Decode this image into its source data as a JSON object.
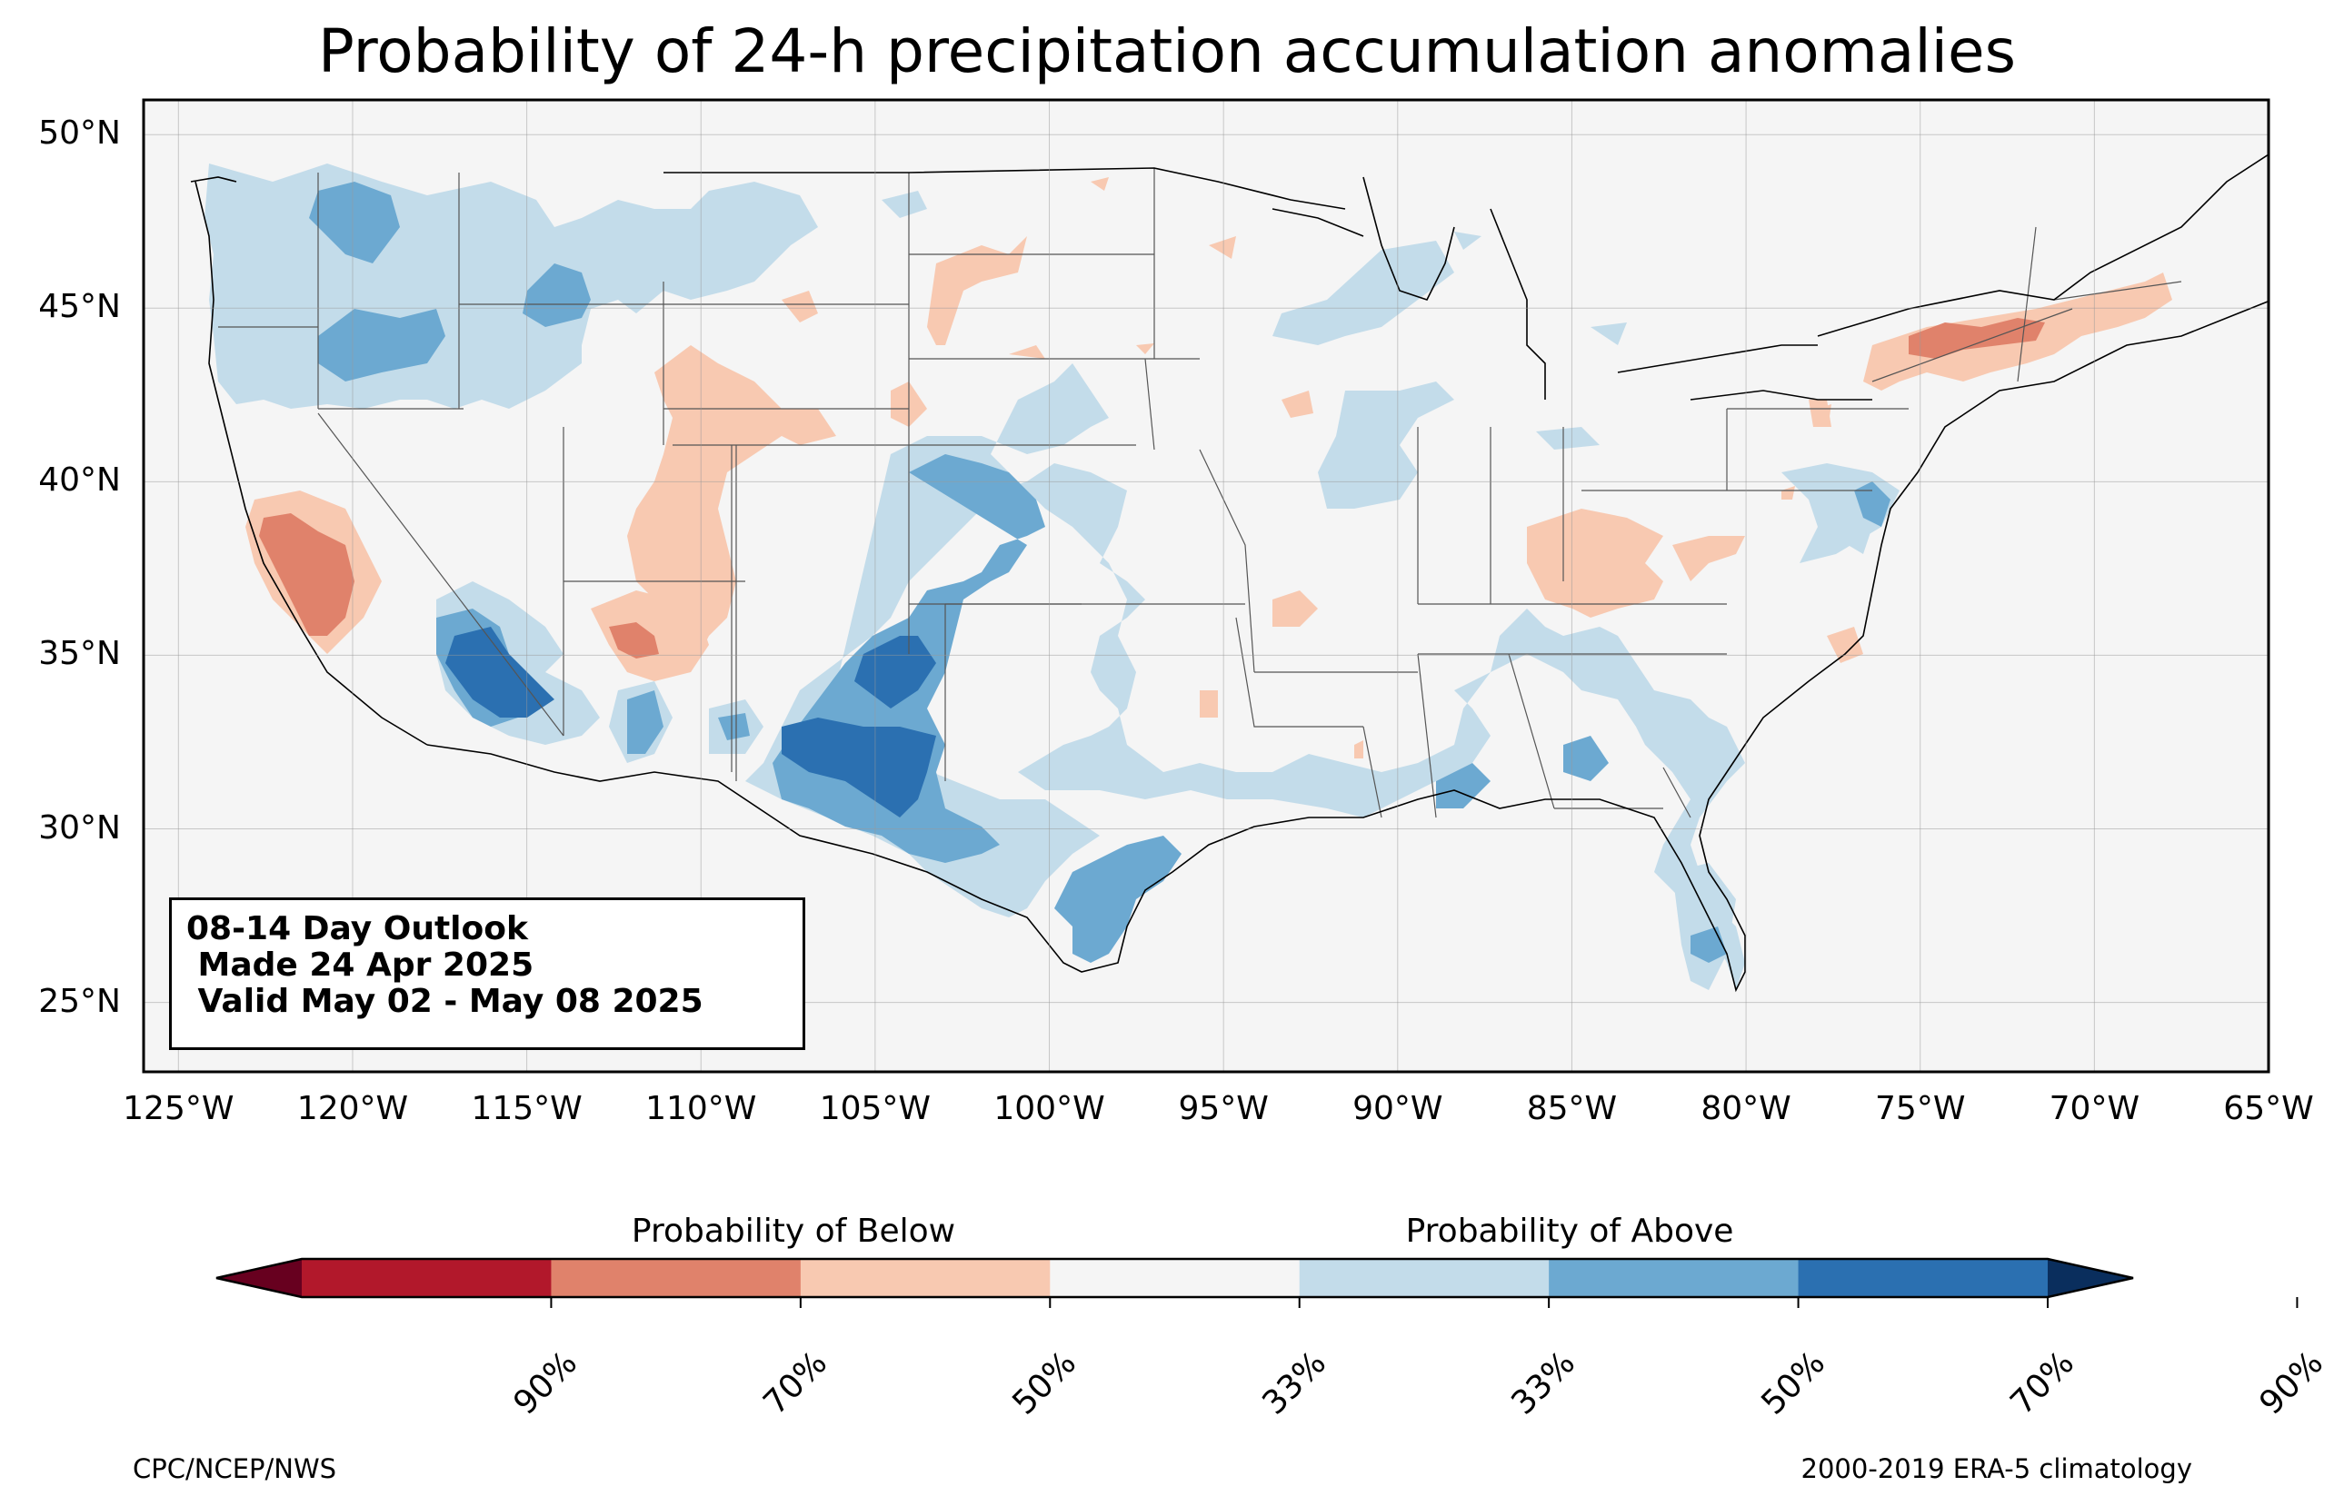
{
  "title": "Probability of 24-h precipitation accumulation anomalies",
  "map": {
    "extent": {
      "lon": [
        -126,
        -65
      ],
      "lat": [
        23,
        51
      ]
    },
    "lat_labels": [
      {
        "lat": 50,
        "text": "50°N"
      },
      {
        "lat": 45,
        "text": "45°N"
      },
      {
        "lat": 40,
        "text": "40°N"
      },
      {
        "lat": 35,
        "text": "35°N"
      },
      {
        "lat": 30,
        "text": "30°N"
      },
      {
        "lat": 25,
        "text": "25°N"
      }
    ],
    "lon_labels": [
      {
        "lon": -125,
        "text": "125°W"
      },
      {
        "lon": -120,
        "text": "120°W"
      },
      {
        "lon": -115,
        "text": "115°W"
      },
      {
        "lon": -110,
        "text": "110°W"
      },
      {
        "lon": -105,
        "text": "105°W"
      },
      {
        "lon": -100,
        "text": "100°W"
      },
      {
        "lon": -95,
        "text": "95°W"
      },
      {
        "lon": -90,
        "text": "90°W"
      },
      {
        "lon": -85,
        "text": "85°W"
      },
      {
        "lon": -80,
        "text": "80°W"
      },
      {
        "lon": -75,
        "text": "75°W"
      },
      {
        "lon": -70,
        "text": "70°W"
      },
      {
        "lon": -65,
        "text": "65°W"
      }
    ],
    "grid": true,
    "background_color": "#f5f5f5"
  },
  "info_box": {
    "line1": "08-14 Day Outlook",
    "line2": " Made 24 Apr 2025",
    "line3": " Valid May 02 - May 08 2025"
  },
  "colorbar": {
    "below_label": "Probability of Below",
    "above_label": "Probability of Above",
    "colors": [
      "#67001f",
      "#b2182b",
      "#e0826b",
      "#f8c9b1",
      "#f5f5f5",
      "#c3dcea",
      "#6ca9d1",
      "#2b70b1",
      "#0a2e5d"
    ],
    "tick_labels": [
      "90%",
      "70%",
      "50%",
      "33%",
      "33%",
      "50%",
      "70%",
      "90%"
    ]
  },
  "footer": {
    "left": "CPC/NCEP/NWS",
    "right": "2000-2019 ERA-5 climatology"
  }
}
